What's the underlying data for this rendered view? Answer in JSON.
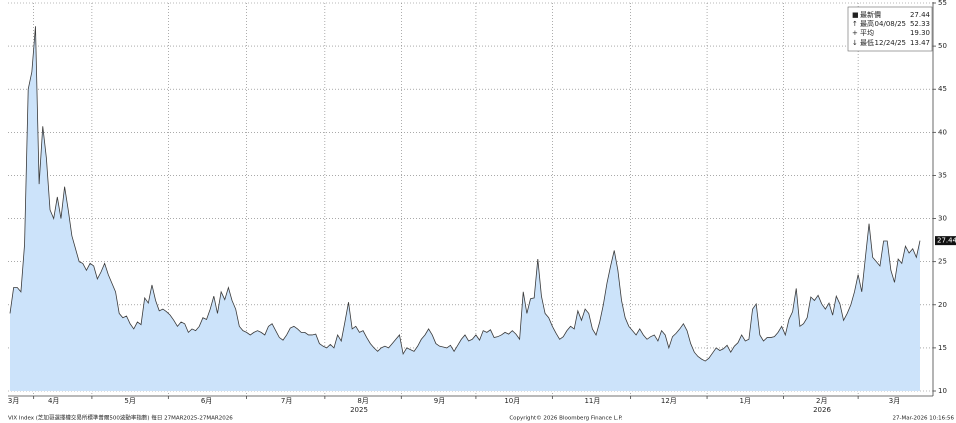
{
  "chart_data": {
    "type": "area",
    "categories": [
      null,
      "3月",
      null,
      null,
      null,
      null,
      null,
      null,
      null,
      null,
      null,
      null,
      "4月",
      null,
      null,
      null,
      null,
      null,
      null,
      null,
      null,
      null,
      null,
      null,
      null,
      null,
      null,
      null,
      null,
      null,
      null,
      null,
      null,
      "5月",
      null,
      null,
      null,
      null,
      null,
      null,
      null,
      null,
      null,
      null,
      null,
      null,
      null,
      null,
      null,
      null,
      null,
      null,
      null,
      null,
      "6月",
      null,
      null,
      null,
      null,
      null,
      null,
      null,
      null,
      null,
      null,
      null,
      null,
      null,
      null,
      null,
      null,
      null,
      null,
      null,
      null,
      null,
      "7月",
      null,
      null,
      null,
      null,
      null,
      null,
      null,
      null,
      null,
      null,
      null,
      null,
      null,
      null,
      null,
      null,
      null,
      null,
      null,
      null,
      "8月",
      null,
      null,
      null,
      null,
      null,
      null,
      null,
      null,
      null,
      null,
      null,
      null,
      null,
      null,
      null,
      null,
      null,
      null,
      null,
      null,
      "9月",
      null,
      null,
      null,
      null,
      null,
      null,
      null,
      null,
      null,
      null,
      null,
      null,
      null,
      null,
      null,
      null,
      null,
      null,
      null,
      "10月",
      null,
      null,
      null,
      null,
      null,
      null,
      null,
      null,
      null,
      null,
      null,
      null,
      null,
      null,
      null,
      null,
      null,
      null,
      null,
      null,
      null,
      "11月",
      null,
      null,
      null,
      null,
      null,
      null,
      null,
      null,
      null,
      null,
      null,
      null,
      null,
      null,
      null,
      null,
      null,
      null,
      null,
      null,
      "12月",
      null,
      null,
      null,
      null,
      null,
      null,
      null,
      null,
      null,
      null,
      null,
      null,
      null,
      null,
      null,
      null,
      null,
      null,
      null,
      null,
      "1月",
      null,
      null,
      null,
      null,
      null,
      null,
      null,
      null,
      null,
      null,
      null,
      null,
      null,
      null,
      null,
      null,
      null,
      null,
      null,
      null,
      "2月",
      null,
      null,
      null,
      null,
      null,
      null,
      null,
      null,
      null,
      null,
      null,
      null,
      null,
      null,
      null,
      null,
      null,
      null,
      null,
      "3月",
      null,
      null,
      null,
      null,
      null,
      null,
      null
    ],
    "values": [
      19,
      22,
      22,
      21.5,
      27,
      45,
      47,
      52.3,
      34,
      40.7,
      37,
      31,
      30,
      32.5,
      30,
      33.7,
      31,
      28,
      26.5,
      25,
      24.8,
      24,
      24.8,
      24.5,
      23,
      23.8,
      24.8,
      23.5,
      22.5,
      21.5,
      19,
      18.5,
      18.7,
      17.8,
      17.2,
      18,
      17.7,
      20.8,
      20.2,
      22.3,
      20.5,
      19.3,
      19.5,
      19.2,
      18.8,
      18.2,
      17.5,
      18,
      17.8,
      16.8,
      17.2,
      17,
      17.5,
      18.5,
      18.3,
      19.5,
      21,
      19,
      21.5,
      20.6,
      22,
      20.5,
      19.5,
      17.5,
      17,
      16.8,
      16.5,
      16.8,
      17,
      16.8,
      16.5,
      17.5,
      17.8,
      17,
      16.2,
      15.9,
      16.5,
      17.3,
      17.5,
      17.2,
      16.8,
      16.8,
      16.5,
      16.5,
      16.6,
      15.5,
      15.2,
      15,
      15.4,
      15,
      16.5,
      15.8,
      18,
      20.3,
      17.2,
      17.5,
      16.8,
      17,
      16.2,
      15.5,
      15,
      14.6,
      15,
      15.2,
      15,
      15.5,
      16,
      16.5,
      14.3,
      15,
      14.8,
      14.6,
      15.2,
      16,
      16.5,
      17.2,
      16.5,
      15.5,
      15.2,
      15.1,
      15,
      15.3,
      14.6,
      15.3,
      16,
      16.5,
      15.8,
      16,
      16.5,
      15.9,
      17,
      16.8,
      17.1,
      16.2,
      16.3,
      16.5,
      16.8,
      16.6,
      17,
      16.6,
      16,
      21.5,
      19,
      20.7,
      20.8,
      25.3,
      21,
      19,
      18.5,
      17.5,
      16.7,
      16,
      16.3,
      17,
      17.5,
      17.2,
      19.3,
      18.2,
      19.5,
      19,
      17.2,
      16.5,
      18,
      20,
      22.5,
      24.5,
      26.3,
      24,
      20.5,
      18.5,
      17.5,
      17,
      16.5,
      17.2,
      16.5,
      16,
      16.3,
      16.5,
      15.8,
      17,
      16.5,
      15,
      16.3,
      16.7,
      17.2,
      17.8,
      17,
      15.5,
      14.5,
      14,
      13.7,
      13.47,
      13.8,
      14.4,
      15,
      14.7,
      14.9,
      15.3,
      14.5,
      15.2,
      15.6,
      16.5,
      15.8,
      16,
      19.5,
      20.1,
      16.5,
      15.8,
      16.2,
      16.2,
      16.3,
      16.8,
      17.5,
      16.5,
      18.3,
      19.2,
      21.9,
      17.5,
      17.8,
      18.5,
      20.9,
      20.5,
      21.1,
      20.1,
      19.5,
      20.2,
      18.8,
      21,
      20.1,
      18.2,
      19,
      20,
      21.5,
      23.5,
      21.5,
      25.5,
      29.4,
      25.5,
      25,
      24.5,
      27.4,
      27.4,
      24,
      22.6,
      25.3,
      24.8,
      26.8,
      26,
      26.5,
      25.5,
      27.44
    ],
    "color": "#cce3fa",
    "line_color": "#3a3a3a",
    "ylim": [
      10,
      55
    ],
    "yticks": [
      10,
      15,
      20,
      25,
      30,
      35,
      40,
      45,
      50,
      55
    ],
    "grid": true,
    "years": [
      "2025",
      "2026"
    ],
    "stats": [
      {
        "name": "最新價",
        "date": "",
        "value": "27.44"
      },
      {
        "name": "最高",
        "date": "04/08/25",
        "value": "52.33"
      },
      {
        "name": "平均",
        "date": "",
        "value": "19.30"
      },
      {
        "name": "最低",
        "date": "12/24/25",
        "value": "13.47"
      }
    ],
    "source": "VIX Index (芝加哥選擇權交易所標準普爾500波動率指數) 每日 27MAR2025-27MAR2026",
    "copyright": "Copyright© 2026 Bloomberg Finance L.P.",
    "timestamp": "27-Mar-2026 10:16:56"
  }
}
